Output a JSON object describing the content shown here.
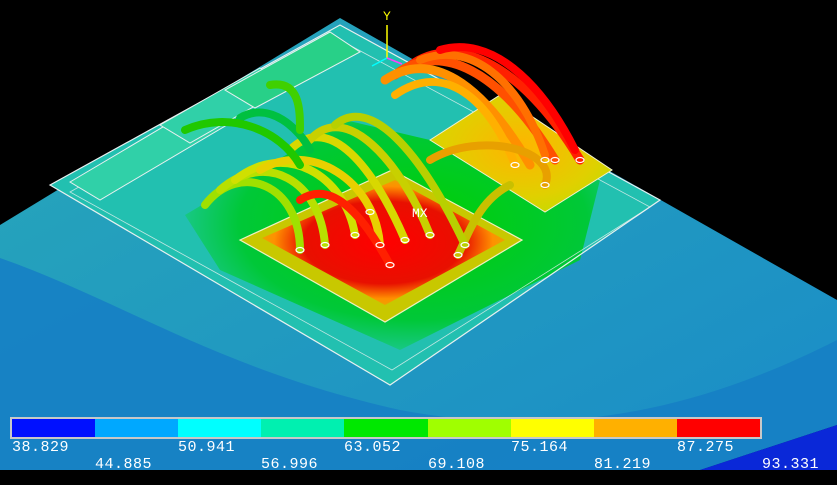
{
  "scene": {
    "axis_label": "Y",
    "max_marker": "MX"
  },
  "legend": {
    "colors": [
      "#0010ff",
      "#00a8ff",
      "#00ffff",
      "#00f0b0",
      "#00e800",
      "#a0ff00",
      "#ffff00",
      "#ffb000",
      "#ff0000"
    ],
    "values": [
      "38.829",
      "44.885",
      "50.941",
      "56.996",
      "63.052",
      "69.108",
      "75.164",
      "81.219",
      "87.275",
      "93.331"
    ]
  }
}
